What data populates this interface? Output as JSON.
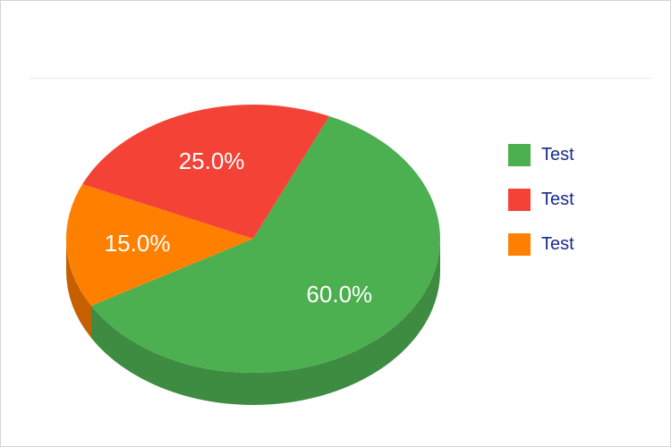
{
  "chart_data": {
    "type": "pie",
    "title": "",
    "style": "3d",
    "legend_position": "right",
    "slices": [
      {
        "name": "Test",
        "value": 60.0,
        "label": "60.0%",
        "color": "#4caf50",
        "side_color": "#3d8c41"
      },
      {
        "name": "Test",
        "value": 15.0,
        "label": "15.0%",
        "color": "#ff8000",
        "side_color": "#c55f00"
      },
      {
        "name": "Test",
        "value": 25.0,
        "label": "25.0%",
        "color": "#f44336",
        "side_color": "#b8312a"
      }
    ],
    "legend": [
      {
        "label": "Test",
        "color": "#4caf50"
      },
      {
        "label": "Test",
        "color": "#f44336"
      },
      {
        "label": "Test",
        "color": "#ff8000"
      }
    ]
  }
}
